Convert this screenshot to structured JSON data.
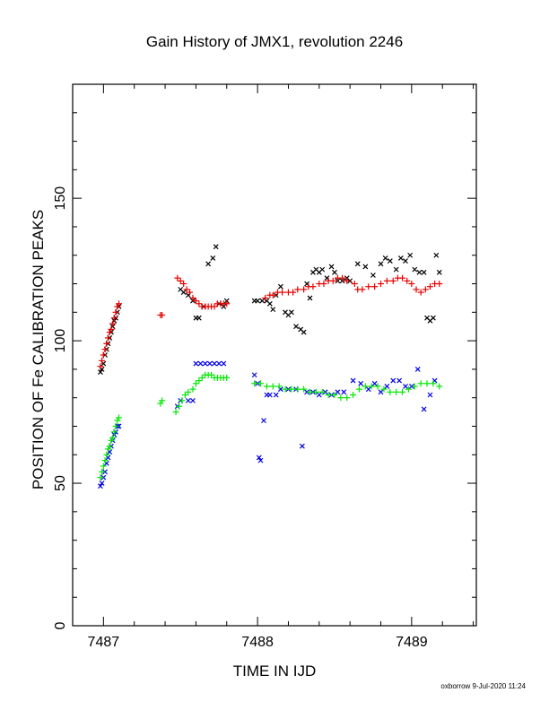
{
  "chart_data": {
    "type": "scatter",
    "title": "Gain History of JMX1, revolution 2246",
    "xlabel": "TIME IN IJD",
    "ylabel": "POSITION OF Fe CALIBRATION PEAKS",
    "xlim": [
      7486.8,
      7489.42
    ],
    "ylim": [
      0,
      190
    ],
    "x_ticks": [
      7487,
      7488,
      7489
    ],
    "x_tick_labels": [
      "7487",
      "7488",
      "7489"
    ],
    "y_ticks": [
      0,
      50,
      100,
      150
    ],
    "y_tick_labels": [
      "0",
      "50",
      "100",
      "150"
    ],
    "grid": false,
    "legend": "none",
    "series": [
      {
        "color": "#000000",
        "marker": "x",
        "x": [
          7486.98,
          7486.99,
          7487.0,
          7487.01,
          7487.02,
          7487.03,
          7487.04,
          7487.05,
          7487.06,
          7487.07,
          7487.08,
          7487.09,
          7487.1,
          7487.5,
          7487.52,
          7487.55,
          7487.58,
          7487.6,
          7487.62,
          7487.65,
          7487.68,
          7487.71,
          7487.73,
          7487.75,
          7487.78,
          7487.8,
          7487.98,
          7488.0,
          7488.03,
          7488.06,
          7488.08,
          7488.1,
          7488.12,
          7488.15,
          7488.18,
          7488.2,
          7488.22,
          7488.25,
          7488.28,
          7488.3,
          7488.32,
          7488.34,
          7488.36,
          7488.38,
          7488.4,
          7488.42,
          7488.45,
          7488.48,
          7488.5,
          7488.52,
          7488.55,
          7488.58,
          7488.6,
          7488.65,
          7488.7,
          7488.75,
          7488.8,
          7488.83,
          7488.86,
          7488.9,
          7488.93,
          7488.96,
          7488.99,
          7489.02,
          7489.05,
          7489.08,
          7489.1,
          7489.12,
          7489.14,
          7489.16,
          7489.18
        ],
        "y": [
          89,
          90,
          92,
          95,
          97,
          99,
          101,
          103,
          105,
          107,
          108,
          110,
          112,
          118,
          117,
          116,
          114,
          108,
          108,
          112,
          127,
          129,
          133,
          113,
          112,
          114,
          114,
          114,
          114,
          114,
          113,
          111,
          116,
          119,
          110,
          109,
          110,
          105,
          104,
          103,
          120,
          115,
          124,
          125,
          124,
          125,
          122,
          126,
          124,
          121,
          121,
          122,
          121,
          127,
          126,
          123,
          127,
          129,
          128,
          125,
          129,
          128,
          130,
          125,
          124,
          124,
          108,
          107,
          108,
          130,
          124
        ]
      },
      {
        "color": "#e80000",
        "marker": "+",
        "x": [
          7486.98,
          7486.99,
          7487.0,
          7487.01,
          7487.02,
          7487.03,
          7487.04,
          7487.05,
          7487.06,
          7487.07,
          7487.08,
          7487.09,
          7487.1,
          7487.37,
          7487.38,
          7487.48,
          7487.5,
          7487.52,
          7487.54,
          7487.56,
          7487.58,
          7487.6,
          7487.62,
          7487.64,
          7487.66,
          7487.68,
          7487.7,
          7487.72,
          7487.74,
          7487.76,
          7487.78,
          7487.8,
          7488.05,
          7488.08,
          7488.1,
          7488.13,
          7488.16,
          7488.2,
          7488.23,
          7488.26,
          7488.3,
          7488.33,
          7488.36,
          7488.4,
          7488.43,
          7488.46,
          7488.49,
          7488.52,
          7488.55,
          7488.58,
          7488.63,
          7488.65,
          7488.68,
          7488.72,
          7488.76,
          7488.8,
          7488.84,
          7488.88,
          7488.91,
          7488.94,
          7488.97,
          7489.0,
          7489.03,
          7489.06,
          7489.09,
          7489.12,
          7489.15,
          7489.18
        ],
        "y": [
          91,
          93,
          95,
          97,
          99,
          101,
          103,
          104,
          106,
          108,
          110,
          112,
          113,
          109,
          109,
          122,
          121,
          120,
          118,
          117,
          115,
          114,
          113,
          112,
          112,
          112,
          112,
          112,
          113,
          113,
          113,
          113,
          115,
          116,
          116,
          117,
          117,
          117,
          117,
          118,
          118,
          119,
          119,
          120,
          120,
          121,
          121,
          122,
          122,
          121,
          120,
          118,
          118,
          119,
          119,
          120,
          121,
          121,
          122,
          122,
          121,
          120,
          118,
          117,
          118,
          119,
          120,
          120
        ]
      },
      {
        "color": "#0000e8",
        "marker": "x",
        "x": [
          7486.98,
          7486.99,
          7487.0,
          7487.01,
          7487.02,
          7487.03,
          7487.04,
          7487.05,
          7487.06,
          7487.07,
          7487.08,
          7487.09,
          7487.1,
          7487.48,
          7487.5,
          7487.55,
          7487.58,
          7487.6,
          7487.63,
          7487.66,
          7487.69,
          7487.72,
          7487.75,
          7487.78,
          7487.98,
          7488.0,
          7488.01,
          7488.02,
          7488.04,
          7488.06,
          7488.08,
          7488.12,
          7488.15,
          7488.2,
          7488.25,
          7488.29,
          7488.32,
          7488.36,
          7488.4,
          7488.44,
          7488.48,
          7488.52,
          7488.56,
          7488.62,
          7488.67,
          7488.72,
          7488.76,
          7488.8,
          7488.84,
          7488.88,
          7488.92,
          7488.96,
          7489.0,
          7489.04,
          7489.08,
          7489.12,
          7489.15
        ],
        "y": [
          49,
          50,
          52,
          54,
          57,
          59,
          61,
          63,
          65,
          67,
          68,
          70,
          70,
          77,
          79,
          79,
          79,
          92,
          92,
          92,
          92,
          92,
          92,
          92,
          88,
          85,
          59,
          58,
          72,
          81,
          81,
          81,
          83,
          83,
          83,
          63,
          82,
          82,
          81,
          82,
          81,
          82,
          82,
          86,
          85,
          83,
          85,
          82,
          84,
          86,
          86,
          84,
          84,
          90,
          76,
          81,
          86
        ]
      },
      {
        "color": "#00e800",
        "marker": "+",
        "x": [
          7486.98,
          7486.99,
          7487.0,
          7487.01,
          7487.02,
          7487.03,
          7487.04,
          7487.05,
          7487.06,
          7487.07,
          7487.08,
          7487.09,
          7487.1,
          7487.37,
          7487.38,
          7487.47,
          7487.49,
          7487.51,
          7487.53,
          7487.55,
          7487.58,
          7487.6,
          7487.62,
          7487.64,
          7487.66,
          7487.68,
          7487.7,
          7487.72,
          7487.74,
          7487.76,
          7487.78,
          7487.8,
          7487.98,
          7488.02,
          7488.06,
          7488.1,
          7488.14,
          7488.18,
          7488.22,
          7488.26,
          7488.3,
          7488.34,
          7488.38,
          7488.42,
          7488.46,
          7488.5,
          7488.54,
          7488.58,
          7488.62,
          7488.66,
          7488.7,
          7488.74,
          7488.78,
          7488.82,
          7488.86,
          7488.9,
          7488.94,
          7488.98,
          7489.02,
          7489.06,
          7489.1,
          7489.14,
          7489.18
        ],
        "y": [
          52,
          54,
          56,
          58,
          60,
          62,
          63,
          65,
          66,
          68,
          70,
          72,
          73,
          78,
          79,
          75,
          77,
          79,
          81,
          82,
          83,
          85,
          86,
          87,
          88,
          88,
          88,
          87,
          87,
          87,
          87,
          87,
          85,
          85,
          84,
          84,
          84,
          83,
          83,
          83,
          83,
          82,
          82,
          82,
          81,
          81,
          80,
          80,
          81,
          83,
          84,
          84,
          84,
          83,
          82,
          82,
          82,
          83,
          84,
          85,
          85,
          85,
          84
        ]
      }
    ]
  },
  "footer": {
    "credit": "oxborrow  9-Jul-2020 11:24"
  }
}
